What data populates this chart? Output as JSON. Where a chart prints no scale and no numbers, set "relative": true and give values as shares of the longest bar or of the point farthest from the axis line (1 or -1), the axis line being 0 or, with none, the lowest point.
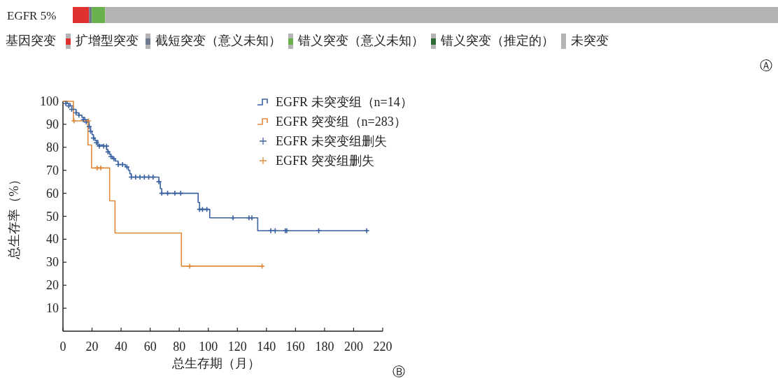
{
  "chart_data": [
    {
      "type": "bar",
      "orientation": "horizontal",
      "stacked": true,
      "relative": true,
      "categories": [
        "EGFR 5%"
      ],
      "legend_title": "基因突变",
      "legend": "bottom",
      "annotations": [
        "Ⓐ"
      ],
      "series": [
        {
          "name": "扩增型突变",
          "color": "#e03131",
          "values": [
            0.023
          ]
        },
        {
          "name": "截短突变（意义未知）",
          "color": "#6d7b8d",
          "values": [
            0.004
          ]
        },
        {
          "name": "错义突变（意义未知）",
          "color": "#6ab04c",
          "values": [
            0.019
          ]
        },
        {
          "name": "错义突变（推定的）",
          "color": "#2e6b35",
          "values": [
            null
          ]
        },
        {
          "name": "未突变",
          "color": "#b4b4b6",
          "values": [
            0.954
          ]
        }
      ]
    },
    {
      "type": "step",
      "xlim": [
        0,
        220
      ],
      "xticks": [
        0,
        20,
        40,
        60,
        80,
        100,
        120,
        140,
        160,
        180,
        200,
        220
      ],
      "ylim": [
        0,
        100
      ],
      "yticks": [
        10,
        20,
        30,
        40,
        50,
        60,
        70,
        80,
        90,
        100
      ],
      "xlabel": "总生存期（月）",
      "ylabel": "总生存率（%）",
      "legend": "top right",
      "annotations": [
        "Ⓑ"
      ],
      "series": [
        {
          "name": "EGFR 未突变组（n=14）",
          "type": "step",
          "color": "#3a62a0",
          "x": [
            0,
            3,
            5,
            7,
            9,
            11,
            13,
            15,
            17,
            18,
            19,
            20,
            21,
            22,
            24,
            28,
            30,
            31,
            32,
            33,
            34,
            36,
            38,
            43,
            45,
            46,
            47,
            66,
            67,
            68,
            93,
            94,
            101,
            134,
            210
          ],
          "values": [
            100,
            99,
            98,
            96.5,
            95,
            94,
            93,
            92,
            91,
            89,
            87,
            85.5,
            84,
            83,
            81,
            80.5,
            79,
            78,
            77,
            76,
            75,
            74,
            72.5,
            71.5,
            70,
            68.5,
            67,
            65,
            62,
            60,
            56,
            53,
            49.3,
            43.7,
            43.7
          ]
        },
        {
          "name": "EGFR 突变组（n=283）",
          "type": "step",
          "color": "#e08a3c",
          "x": [
            0,
            7.2,
            17.2,
            19.7,
            32.1,
            35.8,
            81.5,
            137
          ],
          "values": [
            100,
            91.5,
            81,
            71,
            56.7,
            42.7,
            28.3,
            28.3
          ]
        },
        {
          "name": "EGFR 未突变组删失",
          "type": "scatter",
          "marker": "cross",
          "color": "#3a62a0",
          "x": [
            2,
            4,
            6,
            9,
            11,
            14,
            16,
            18,
            19,
            21,
            23,
            25,
            28,
            30,
            31,
            33,
            35,
            38,
            41,
            44,
            47,
            50,
            53,
            56,
            59,
            62,
            66,
            68,
            72,
            77,
            81,
            94,
            96,
            99,
            117,
            128,
            130,
            143,
            146,
            153,
            154,
            176,
            209
          ],
          "values": [
            99,
            98,
            96.5,
            95,
            94,
            92,
            91,
            89,
            87,
            84,
            82,
            80.5,
            80.5,
            80.5,
            78,
            76,
            75,
            72.5,
            72.5,
            71.5,
            67,
            67,
            67,
            67,
            67,
            67,
            65,
            60,
            60,
            60,
            60,
            53,
            53,
            53,
            49.3,
            49.3,
            49.3,
            43.7,
            43.7,
            43.7,
            43.7,
            43.7,
            43.7
          ]
        },
        {
          "name": "EGFR 突变组删失",
          "type": "scatter",
          "marker": "cross",
          "color": "#e08a3c",
          "x": [
            7.6,
            17.6,
            23.6,
            26,
            87.2,
            137
          ],
          "values": [
            91.5,
            91.5,
            71,
            71,
            28.3,
            28.3
          ]
        }
      ]
    }
  ]
}
